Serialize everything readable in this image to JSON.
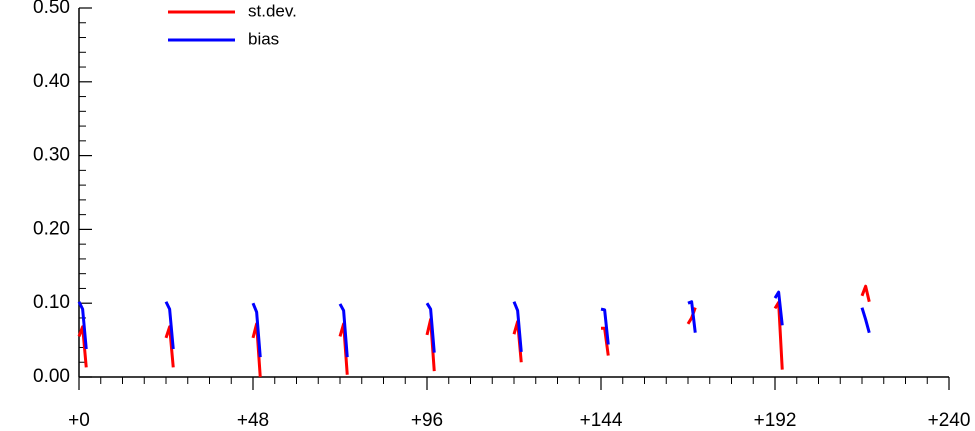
{
  "chart_data": {
    "type": "line",
    "x": [
      0,
      1,
      2,
      null,
      24,
      25,
      26,
      null,
      48,
      49,
      50,
      null,
      72,
      73,
      74,
      null,
      96,
      97,
      98,
      null,
      120,
      121,
      122,
      null,
      144,
      145,
      146,
      null,
      168,
      169,
      170,
      null,
      192,
      193,
      194,
      null,
      216,
      217,
      218
    ],
    "series": [
      {
        "name": "st.dev.",
        "color": "#ff0000",
        "values": [
          0.055,
          0.068,
          0.013,
          null,
          0.053,
          0.068,
          0.013,
          null,
          0.053,
          0.072,
          0.0,
          null,
          0.055,
          0.072,
          0.003,
          null,
          0.057,
          0.078,
          0.008,
          null,
          0.058,
          0.075,
          0.02,
          null,
          0.066,
          0.066,
          0.029,
          null,
          0.072,
          0.08,
          0.094,
          null,
          0.093,
          0.101,
          0.01,
          null,
          0.11,
          0.123,
          0.102
        ]
      },
      {
        "name": "bias",
        "color": "#0000ff",
        "values": [
          0.102,
          0.092,
          0.038,
          null,
          0.102,
          0.092,
          0.038,
          null,
          0.1,
          0.088,
          0.027,
          null,
          0.099,
          0.09,
          0.027,
          null,
          0.1,
          0.092,
          0.033,
          null,
          0.102,
          0.09,
          0.034,
          null,
          0.092,
          0.091,
          0.044,
          null,
          0.1,
          0.102,
          0.06,
          null,
          0.107,
          0.115,
          0.07,
          null,
          0.094,
          0.078,
          0.06
        ]
      }
    ],
    "xlim": [
      0,
      240
    ],
    "xticks": [
      {
        "value": 0,
        "label": "+0"
      },
      {
        "value": 48,
        "label": "+48"
      },
      {
        "value": 96,
        "label": "+96"
      },
      {
        "value": 144,
        "label": "+144"
      },
      {
        "value": 192,
        "label": "+192"
      },
      {
        "value": 240,
        "label": "+240"
      }
    ],
    "xminorticks": [
      6,
      12,
      18,
      24,
      30,
      36,
      42,
      54,
      60,
      66,
      72,
      78,
      84,
      90,
      102,
      108,
      114,
      120,
      126,
      132,
      138,
      150,
      156,
      162,
      168,
      174,
      180,
      186,
      198,
      204,
      210,
      216,
      222,
      228,
      234
    ],
    "ylim": [
      0,
      0.5
    ],
    "yticks": [
      {
        "value": 0,
        "label": "0.00"
      },
      {
        "value": 0.1,
        "label": "0.10"
      },
      {
        "value": 0.2,
        "label": "0.20"
      },
      {
        "value": 0.3,
        "label": "0.30"
      },
      {
        "value": 0.4,
        "label": "0.40"
      },
      {
        "value": 0.5,
        "label": "0.50"
      }
    ],
    "yminorticks": [
      0.02,
      0.04,
      0.06,
      0.08,
      0.12,
      0.14,
      0.16,
      0.18,
      0.22,
      0.24,
      0.26,
      0.28,
      0.32,
      0.34,
      0.36,
      0.38,
      0.42,
      0.44,
      0.46,
      0.48
    ]
  }
}
